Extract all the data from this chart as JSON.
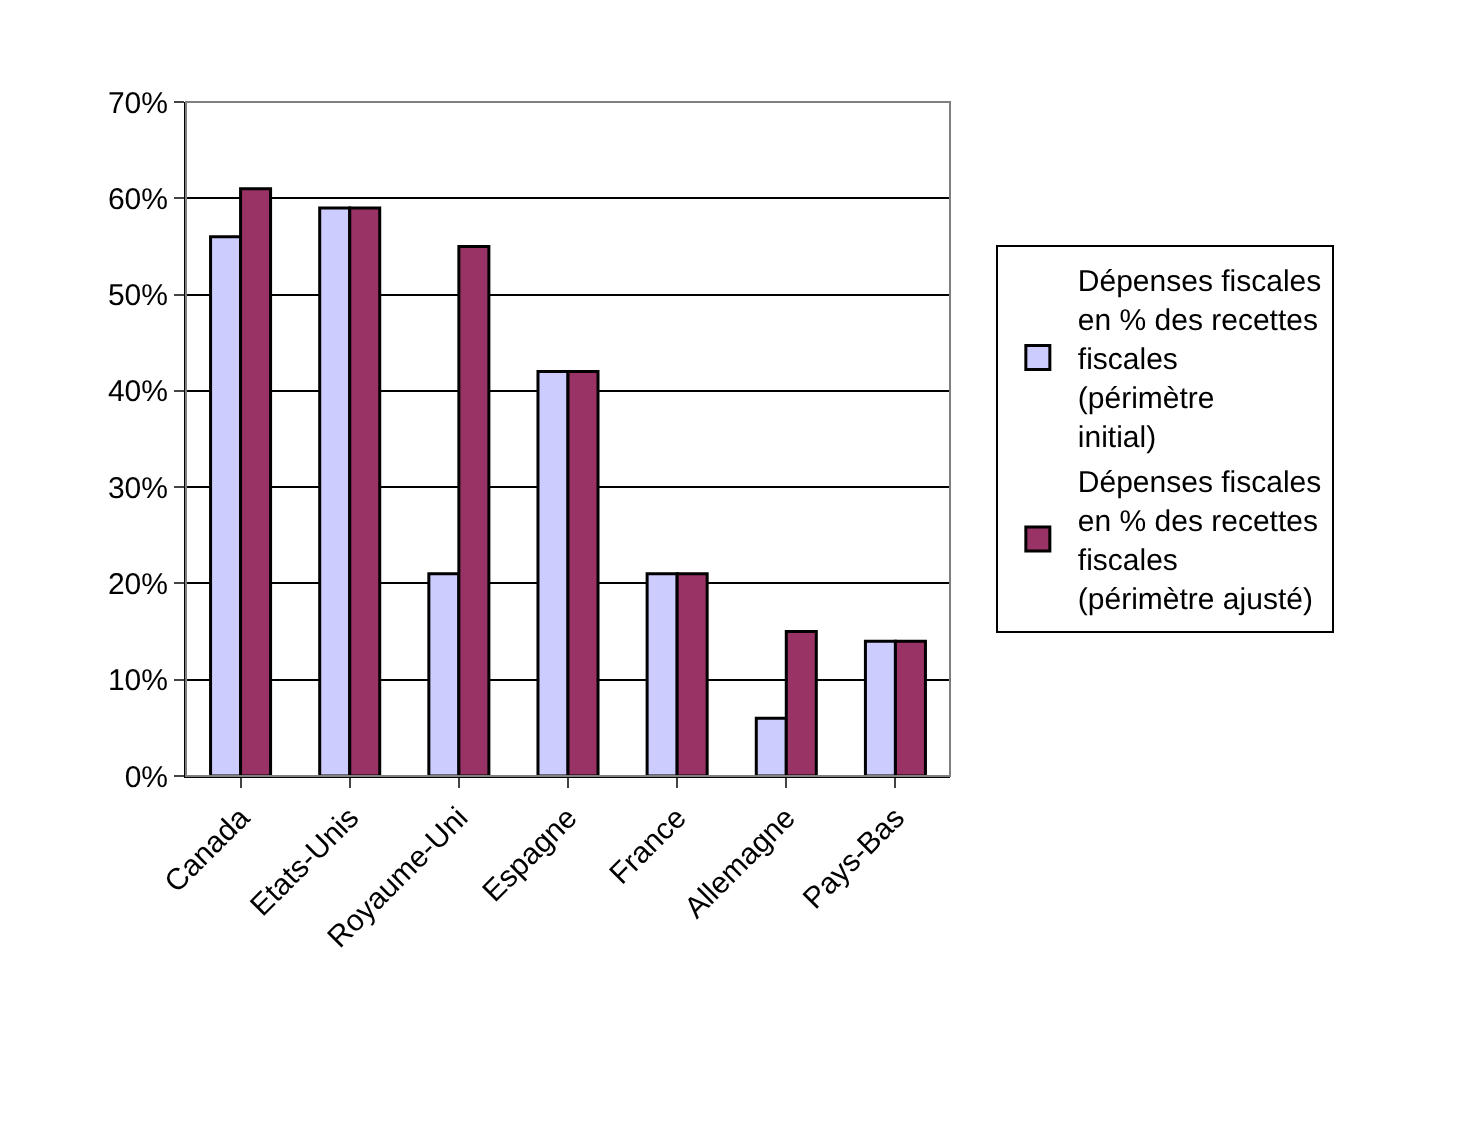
{
  "chart_data": {
    "type": "bar",
    "categories": [
      "Canada",
      "Etats-Unis",
      "Royaume-Uni",
      "Espagne",
      "France",
      "Allemagne",
      "Pays-Bas"
    ],
    "series": [
      {
        "name": "Dépenses fiscales en % des recettes fiscales (périmètre initial)",
        "color": "#ccccff",
        "values": [
          56,
          59,
          21,
          42,
          21,
          6,
          14
        ]
      },
      {
        "name": "Dépenses fiscales en % des recettes fiscales (périmètre ajusté)",
        "color": "#993366",
        "values": [
          61,
          59,
          55,
          42,
          21,
          15,
          14
        ]
      }
    ],
    "ylim": [
      0,
      70
    ],
    "yticks": [
      {
        "value": 0,
        "label": "0%"
      },
      {
        "value": 10,
        "label": "10%"
      },
      {
        "value": 20,
        "label": "20%"
      },
      {
        "value": 30,
        "label": "30%"
      },
      {
        "value": 40,
        "label": "40%"
      },
      {
        "value": 50,
        "label": "50%"
      },
      {
        "value": 60,
        "label": "60%"
      },
      {
        "value": 70,
        "label": "70%"
      }
    ],
    "grid": "y",
    "legend": "right"
  }
}
